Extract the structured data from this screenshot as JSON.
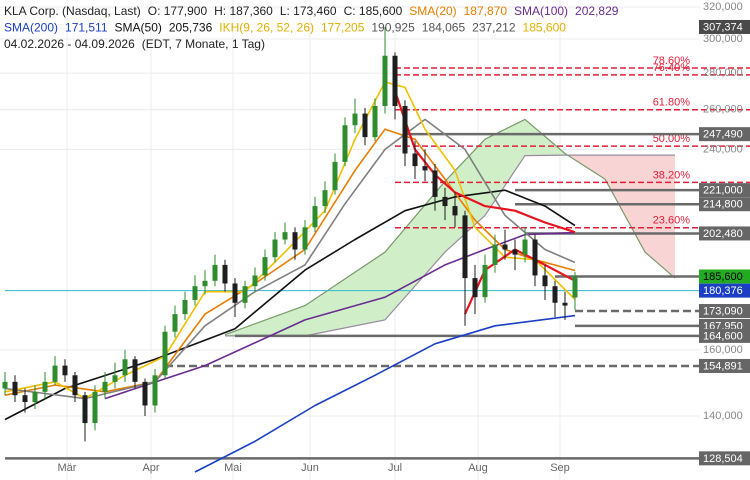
{
  "chart_data": {
    "type": "candlestick",
    "header_lines": [
      [
        {
          "text": "KLA Corp. (Nasdaq, Last)",
          "color": "#222222"
        },
        {
          "text": "O: 177,900",
          "color": "#222222"
        },
        {
          "text": "H: 187,360",
          "color": "#222222"
        },
        {
          "text": "L: 173,460",
          "color": "#222222"
        },
        {
          "text": "C: 185,600",
          "color": "#222222"
        },
        {
          "text": "SMA(20)",
          "color": "#e67e00"
        },
        {
          "text": "187,870",
          "color": "#e67e00"
        },
        {
          "text": "SMA(100)",
          "color": "#6a2c91"
        },
        {
          "text": "202,829",
          "color": "#6a2c91"
        }
      ],
      [
        {
          "text": "SMA(200)",
          "color": "#1a3fc4"
        },
        {
          "text": "171,511",
          "color": "#1a3fc4"
        },
        {
          "text": "SMA(50)",
          "color": "#111111"
        },
        {
          "text": "205,736",
          "color": "#111111"
        },
        {
          "text": "IKH(9, 26, 52, 26)",
          "color": "#e0b000"
        },
        {
          "text": "177,205",
          "color": "#e0b000"
        },
        {
          "text": "190,925",
          "color": "#555555"
        },
        {
          "text": "184,065",
          "color": "#555555"
        },
        {
          "text": "237,212",
          "color": "#555555"
        },
        {
          "text": "185,600",
          "color": "#e0b000"
        }
      ],
      [
        {
          "text": "04.02.2026 - 04.09.2026",
          "color": "#222222"
        },
        {
          "text": "(EDT, 7 Monate, 1 Tag)",
          "color": "#222222"
        }
      ]
    ],
    "log_scale": true,
    "grid": true,
    "xlim": [
      -0.5,
      69.5
    ],
    "ylim": [
      123000,
      324600
    ],
    "xticks": [
      {
        "value": 6.2,
        "label": "Mär"
      },
      {
        "value": 14.6,
        "label": "Apr"
      },
      {
        "value": 22.8,
        "label": "Mai"
      },
      {
        "value": 30.5,
        "label": "Jun"
      },
      {
        "value": 39,
        "label": "Jul"
      },
      {
        "value": 47.3,
        "label": "Aug"
      },
      {
        "value": 55.5,
        "label": "Sep"
      }
    ],
    "yticks": [
      {
        "value": 320000,
        "label": "320,000"
      },
      {
        "value": 300000,
        "label": "300,000"
      },
      {
        "value": 280000,
        "label": "280,000"
      },
      {
        "value": 260000,
        "label": "260,000"
      },
      {
        "value": 240000,
        "label": "240,000"
      },
      {
        "value": 160000,
        "label": "160,000"
      },
      {
        "value": 140000,
        "label": "140,000"
      }
    ],
    "up_color": "#2e8b2e",
    "down_color": "#1e1e1e",
    "candle_x": [
      0,
      1,
      2,
      3,
      4,
      5,
      6,
      7,
      8,
      9,
      10,
      11,
      12,
      13,
      14,
      15,
      16,
      17,
      18,
      19,
      20,
      21,
      22,
      23,
      24,
      25,
      26,
      27,
      28,
      29,
      30,
      31,
      32,
      33,
      34,
      35,
      36,
      37,
      38,
      39,
      40,
      41,
      42,
      43,
      44,
      45,
      46,
      47,
      48,
      49,
      50,
      51,
      52,
      53,
      54,
      55,
      56,
      57
    ],
    "ohlc": [
      [
        148000,
        153000,
        146000,
        150000
      ],
      [
        150000,
        152000,
        144000,
        146000
      ],
      [
        146000,
        148000,
        141000,
        144000
      ],
      [
        144000,
        149000,
        142000,
        147000
      ],
      [
        147000,
        153000,
        145000,
        150000
      ],
      [
        150000,
        158000,
        149000,
        155000
      ],
      [
        155000,
        157000,
        150000,
        152000
      ],
      [
        152000,
        153000,
        144000,
        146000
      ],
      [
        146000,
        147000,
        133000,
        138000
      ],
      [
        138000,
        149000,
        136000,
        147000
      ],
      [
        147000,
        153000,
        145000,
        150000
      ],
      [
        150000,
        156000,
        148000,
        152000
      ],
      [
        152000,
        160000,
        150000,
        157000
      ],
      [
        157000,
        158000,
        148000,
        150000
      ],
      [
        150000,
        151000,
        140000,
        143000
      ],
      [
        143000,
        154000,
        141000,
        152000
      ],
      [
        152000,
        168000,
        151000,
        166000
      ],
      [
        166000,
        175000,
        164000,
        172000
      ],
      [
        172000,
        180000,
        170000,
        177000
      ],
      [
        177000,
        186000,
        175000,
        182000
      ],
      [
        182000,
        188000,
        179000,
        184000
      ],
      [
        184000,
        194000,
        182000,
        190000
      ],
      [
        190000,
        192000,
        180000,
        183000
      ],
      [
        183000,
        185000,
        171000,
        176000
      ],
      [
        176000,
        184000,
        174000,
        182000
      ],
      [
        182000,
        189000,
        180000,
        186000
      ],
      [
        186000,
        196000,
        184000,
        193000
      ],
      [
        193000,
        203000,
        191000,
        200000
      ],
      [
        200000,
        207000,
        198000,
        203000
      ],
      [
        203000,
        205000,
        192000,
        196000
      ],
      [
        196000,
        208000,
        194000,
        205000
      ],
      [
        205000,
        218000,
        203000,
        214000
      ],
      [
        214000,
        225000,
        211000,
        221000
      ],
      [
        221000,
        238000,
        219000,
        234000
      ],
      [
        234000,
        256000,
        232000,
        252000
      ],
      [
        252000,
        266000,
        248000,
        258000
      ],
      [
        258000,
        261000,
        242000,
        246000
      ],
      [
        246000,
        266000,
        244000,
        262000
      ],
      [
        262000,
        307374,
        258000,
        290000
      ],
      [
        290000,
        292000,
        255000,
        262000
      ],
      [
        262000,
        265000,
        232000,
        238000
      ],
      [
        238000,
        244000,
        226000,
        232000
      ],
      [
        232000,
        240000,
        225000,
        230000
      ],
      [
        230000,
        233000,
        212000,
        218000
      ],
      [
        218000,
        222000,
        208000,
        214000
      ],
      [
        214000,
        220000,
        205000,
        210000
      ],
      [
        210000,
        212000,
        168000,
        185000
      ],
      [
        185000,
        190000,
        172000,
        178000
      ],
      [
        178000,
        194000,
        176000,
        190000
      ],
      [
        190000,
        202000,
        187000,
        198000
      ],
      [
        198000,
        204000,
        192000,
        196000
      ],
      [
        196000,
        200000,
        188000,
        194000
      ],
      [
        194000,
        205000,
        191000,
        200000
      ],
      [
        200000,
        202000,
        182000,
        186000
      ],
      [
        186000,
        190000,
        177000,
        182000
      ],
      [
        182000,
        184000,
        171000,
        176000
      ],
      [
        176000,
        180000,
        170000,
        175000
      ],
      [
        177900,
        187360,
        173460,
        185600
      ]
    ],
    "cloud": {
      "x": [
        22,
        30,
        38,
        44,
        48,
        52,
        56,
        60,
        64,
        67
      ],
      "span_a": [
        165000,
        175000,
        195000,
        225000,
        245000,
        255000,
        238000,
        226000,
        195000,
        185000
      ],
      "span_b": [
        164600,
        164600,
        170000,
        195000,
        210000,
        237000,
        237212,
        237212,
        237212,
        237212
      ],
      "up_fill": "#c8ecc0",
      "down_fill": "#f8cccc",
      "a_color": "#7a9a6a",
      "b_color": "#9a8aa0"
    },
    "series": [
      {
        "color": "#1a3fc4",
        "x": [
          19,
          25,
          31,
          37,
          43,
          49,
          57
        ],
        "values": [
          125000,
          133000,
          143000,
          152000,
          162000,
          168000,
          171511
        ]
      },
      {
        "color": "#6a2c91",
        "x": [
          10,
          20,
          30,
          38,
          44,
          48,
          52,
          57
        ],
        "values": [
          145000,
          155000,
          170000,
          178000,
          190000,
          196000,
          202000,
          202829
        ]
      },
      {
        "color": "#111111",
        "x": [
          0,
          6,
          15,
          23,
          30,
          35,
          40,
          45,
          50,
          54,
          57
        ],
        "values": [
          139000,
          148000,
          157000,
          167000,
          188000,
          200000,
          212000,
          218000,
          221000,
          214000,
          205736
        ]
      },
      {
        "color": "#e67e00",
        "x": [
          0,
          5,
          10,
          15,
          20,
          25,
          30,
          35,
          38,
          41,
          44,
          47,
          50,
          53,
          57
        ],
        "values": [
          146000,
          149000,
          147000,
          150000,
          172000,
          183000,
          196000,
          230000,
          250000,
          245000,
          226000,
          208000,
          196000,
          192000,
          187870
        ]
      },
      {
        "color": "#808080",
        "x": [
          0,
          8,
          15,
          20,
          25,
          30,
          34,
          38,
          42,
          46,
          50,
          54,
          57
        ],
        "values": [
          148000,
          145000,
          150000,
          168000,
          180000,
          190000,
          215000,
          240000,
          255000,
          240000,
          210000,
          196000,
          190925
        ]
      },
      {
        "color": "#f0c000",
        "x": [
          0,
          5,
          8,
          12,
          16,
          20,
          24,
          28,
          32,
          35,
          38,
          40,
          42,
          45,
          47,
          50,
          53,
          57
        ],
        "values": [
          147000,
          150000,
          145000,
          152000,
          158000,
          180000,
          180000,
          195000,
          212000,
          245000,
          275000,
          272000,
          250000,
          230000,
          205000,
          193000,
          192000,
          177205
        ]
      },
      {
        "color": "#e8141e",
        "x": [
          39,
          41,
          43,
          45,
          48,
          51,
          54,
          57
        ],
        "values": [
          270000,
          240000,
          228000,
          220000,
          214000,
          212000,
          207000,
          203000
        ]
      },
      {
        "color": "#e8141e",
        "x": [
          46,
          48,
          51,
          54,
          57
        ],
        "values": [
          172000,
          188000,
          196000,
          190000,
          184000
        ]
      }
    ],
    "fib": [
      {
        "value": 282900,
        "label": "78.60%"
      },
      {
        "value": 279000,
        "label": "76.40%"
      },
      {
        "value": 260000,
        "label": "61.80%"
      },
      {
        "value": 241600,
        "label": "50.00%"
      },
      {
        "value": 224500,
        "label": "38.20%"
      },
      {
        "value": 204800,
        "label": "23.60%"
      }
    ],
    "fib_x_start": 39,
    "fib_color": "#e0203a",
    "levels": [
      {
        "value": 307374,
        "label": "307,374",
        "x_start": 38,
        "style": "none",
        "bg": "#4a4a4a",
        "fg": "#ffffff"
      },
      {
        "value": 247490,
        "label": "247,490",
        "x_start": 40,
        "style": "solid",
        "bg": "#666666",
        "fg": "#ffffff"
      },
      {
        "value": 221000,
        "label": "221,000",
        "x_start": 51,
        "style": "solid",
        "bg": "#666666",
        "fg": "#ffffff"
      },
      {
        "value": 214800,
        "label": "214,800",
        "x_start": 51,
        "style": "solid",
        "bg": "#666666",
        "fg": "#ffffff"
      },
      {
        "value": 202480,
        "label": "202,480",
        "x_start": 52,
        "style": "solid",
        "bg": "#666666",
        "fg": "#ffffff"
      },
      {
        "value": 185600,
        "label": "185,600",
        "x_start": 55,
        "style": "solid",
        "bg": "#22aa22",
        "fg": "#000000"
      },
      {
        "value": 180376,
        "label": "180,376",
        "x_start": 0,
        "style": "thin",
        "bg": "#1a3fc4",
        "fg": "#ffffff"
      },
      {
        "value": 173090,
        "label": "173,090",
        "x_start": 57,
        "style": "dashed",
        "bg": "#666666",
        "fg": "#ffffff"
      },
      {
        "value": 167950,
        "label": "167,950",
        "x_start": 57,
        "style": "solid",
        "bg": "#666666",
        "fg": "#ffffff"
      },
      {
        "value": 164600,
        "label": "164,600",
        "x_start": 23,
        "style": "solid",
        "bg": "#666666",
        "fg": "#ffffff"
      },
      {
        "value": 154891,
        "label": "154,891",
        "x_start": 16,
        "style": "dashed",
        "bg": "#666666",
        "fg": "#ffffff"
      },
      {
        "value": 128504,
        "label": "128,504",
        "x_start": 0,
        "style": "solid",
        "bg": "#666666",
        "fg": "#ffffff"
      }
    ]
  }
}
